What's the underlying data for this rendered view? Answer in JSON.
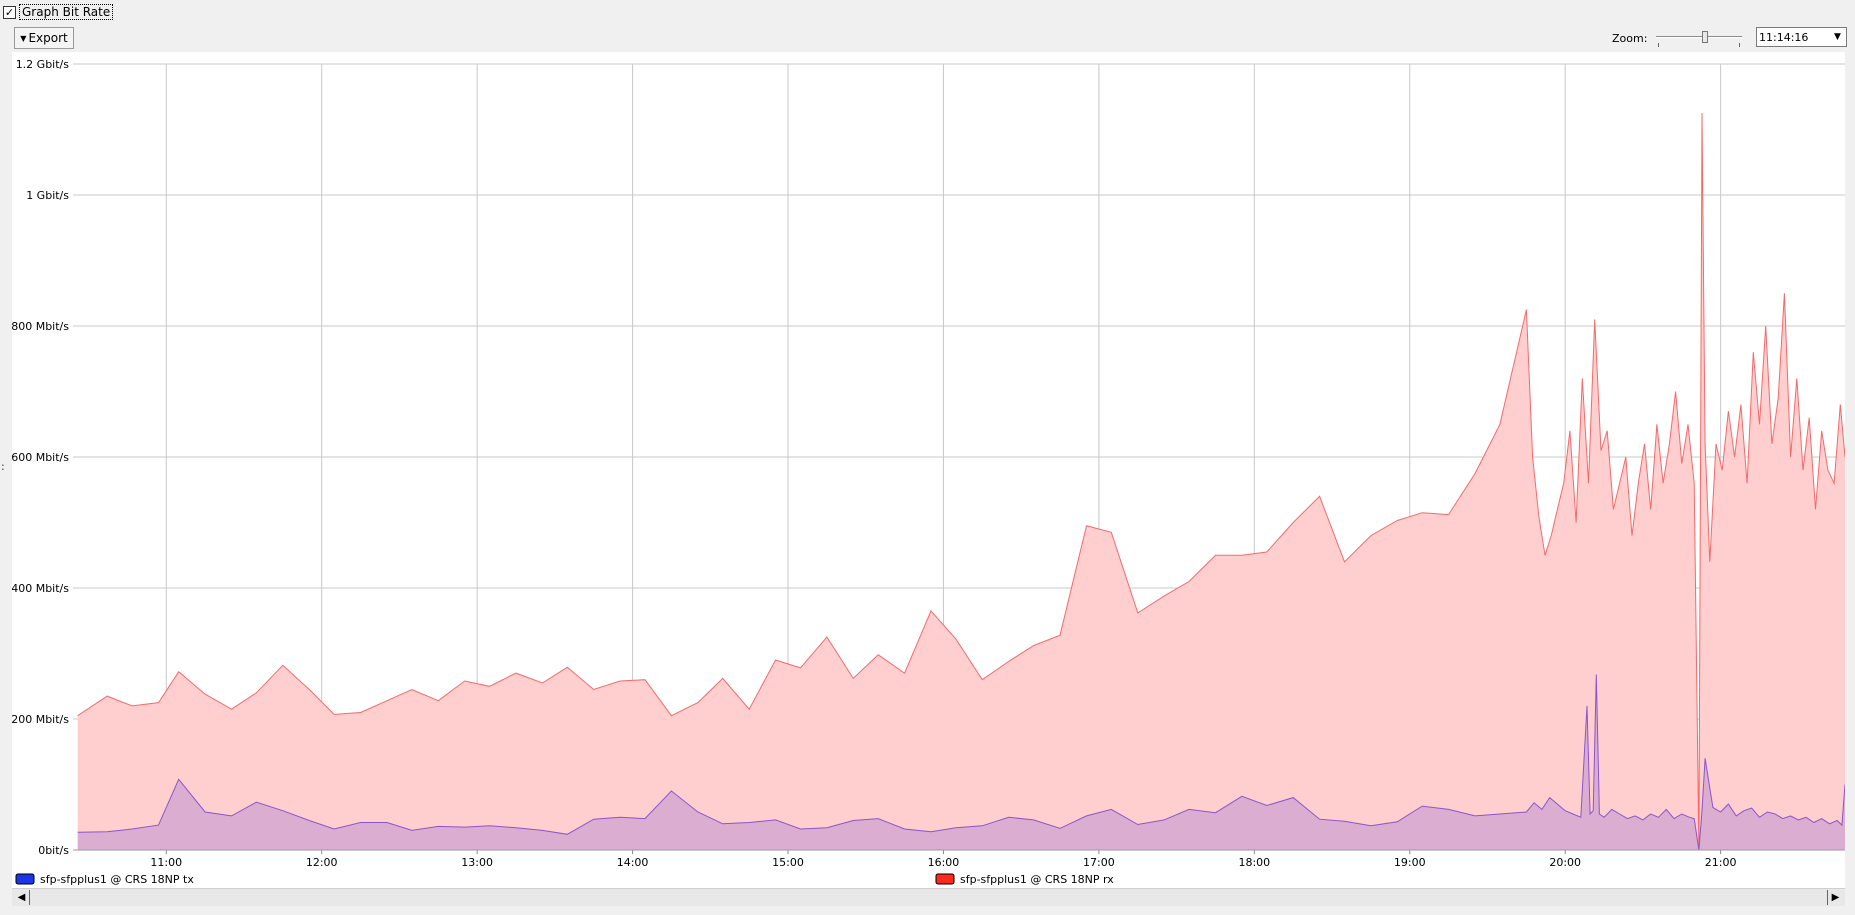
{
  "header": {
    "checkbox_mark": "✓",
    "graph_toggle_label": "Graph Bit Rate",
    "export_label": "Export",
    "export_arrow": "▼",
    "zoom_label": "Zoom:",
    "zoom_level": 0.58,
    "time_value": "11:14:16",
    "select_arrow": "▼"
  },
  "handle_glyph": ":",
  "chart_data": {
    "type": "area",
    "y_unit": "Mbit/s",
    "ylim": [
      0,
      1200
    ],
    "xlim": [
      10.4,
      21.8
    ],
    "y_ticks": [
      {
        "value": 0,
        "label": "0bit/s"
      },
      {
        "value": 200,
        "label": "200 Mbit/s"
      },
      {
        "value": 400,
        "label": "400 Mbit/s"
      },
      {
        "value": 600,
        "label": "600 Mbit/s"
      },
      {
        "value": 800,
        "label": "800 Mbit/s"
      },
      {
        "value": 1000,
        "label": "1 Gbit/s"
      },
      {
        "value": 1200,
        "label": "1.2 Gbit/s"
      }
    ],
    "x_ticks": [
      {
        "value": 11,
        "label": "11:00"
      },
      {
        "value": 12,
        "label": "12:00"
      },
      {
        "value": 13,
        "label": "13:00"
      },
      {
        "value": 14,
        "label": "14:00"
      },
      {
        "value": 15,
        "label": "15:00"
      },
      {
        "value": 16,
        "label": "16:00"
      },
      {
        "value": 17,
        "label": "17:00"
      },
      {
        "value": 18,
        "label": "18:00"
      },
      {
        "value": 19,
        "label": "19:00"
      },
      {
        "value": 20,
        "label": "20:00"
      },
      {
        "value": 21,
        "label": "21:00"
      }
    ],
    "grid": true,
    "legend_position": "bottom",
    "series": [
      {
        "name": "sfp-sfpplus1 @ CRS 18NP rx",
        "legend_color": "#ff2a1a",
        "stroke": "#f26b6b",
        "fill": "#ffcece",
        "x": [
          10.43,
          10.62,
          10.78,
          10.95,
          11.08,
          11.25,
          11.42,
          11.58,
          11.75,
          11.92,
          12.08,
          12.25,
          12.42,
          12.58,
          12.75,
          12.92,
          13.08,
          13.25,
          13.42,
          13.58,
          13.75,
          13.92,
          14.08,
          14.25,
          14.42,
          14.58,
          14.75,
          14.92,
          15.08,
          15.25,
          15.42,
          15.58,
          15.75,
          15.92,
          16.08,
          16.25,
          16.42,
          16.58,
          16.75,
          16.92,
          17.08,
          17.25,
          17.42,
          17.58,
          17.75,
          17.92,
          18.08,
          18.25,
          18.42,
          18.58,
          18.75,
          18.92,
          19.08,
          19.25,
          19.42,
          19.58,
          19.75,
          19.79,
          19.83,
          19.87,
          19.91,
          19.95,
          19.99,
          20.03,
          20.07,
          20.11,
          20.15,
          20.19,
          20.23,
          20.27,
          20.31,
          20.35,
          20.39,
          20.43,
          20.47,
          20.51,
          20.55,
          20.59,
          20.63,
          20.67,
          20.71,
          20.75,
          20.79,
          20.83,
          20.86,
          20.88,
          20.9,
          20.93,
          20.97,
          21.01,
          21.05,
          21.09,
          21.13,
          21.17,
          21.21,
          21.25,
          21.29,
          21.33,
          21.37,
          21.41,
          21.45,
          21.49,
          21.53,
          21.57,
          21.61,
          21.65,
          21.69,
          21.73,
          21.77,
          21.8
        ],
        "values": [
          205,
          235,
          220,
          225,
          272,
          238,
          215,
          240,
          282,
          245,
          207,
          210,
          228,
          245,
          228,
          258,
          250,
          270,
          255,
          279,
          245,
          258,
          260,
          205,
          225,
          262,
          215,
          290,
          278,
          325,
          262,
          298,
          270,
          365,
          322,
          260,
          288,
          312,
          328,
          495,
          485,
          362,
          388,
          410,
          450,
          450,
          455,
          500,
          540,
          440,
          480,
          503,
          515,
          512,
          575,
          650,
          825,
          600,
          510,
          450,
          480,
          520,
          560,
          640,
          500,
          720,
          560,
          810,
          610,
          640,
          520,
          560,
          600,
          480,
          560,
          620,
          520,
          650,
          560,
          620,
          700,
          590,
          650,
          560,
          0,
          1125,
          620,
          440,
          620,
          580,
          670,
          600,
          680,
          560,
          760,
          650,
          800,
          620,
          690,
          850,
          600,
          720,
          580,
          660,
          520,
          640,
          580,
          560,
          680,
          600
        ]
      },
      {
        "name": "sfp-sfpplus1 @ CRS 18NP tx",
        "legend_color": "#1a36e8",
        "stroke": "#8a55cc",
        "fill": "#c39ad4",
        "fill_opacity": 0.6,
        "x": [
          10.43,
          10.62,
          10.78,
          10.95,
          11.08,
          11.25,
          11.42,
          11.58,
          11.75,
          11.92,
          12.08,
          12.25,
          12.42,
          12.58,
          12.75,
          12.92,
          13.08,
          13.25,
          13.42,
          13.58,
          13.75,
          13.92,
          14.08,
          14.25,
          14.42,
          14.58,
          14.75,
          14.92,
          15.08,
          15.25,
          15.42,
          15.58,
          15.75,
          15.92,
          16.08,
          16.25,
          16.42,
          16.58,
          16.75,
          16.92,
          17.08,
          17.25,
          17.42,
          17.58,
          17.75,
          17.92,
          18.08,
          18.25,
          18.42,
          18.58,
          18.75,
          18.92,
          19.08,
          19.25,
          19.42,
          19.58,
          19.75,
          19.8,
          19.85,
          19.9,
          19.95,
          20.0,
          20.05,
          20.1,
          20.14,
          20.16,
          20.18,
          20.2,
          20.22,
          20.25,
          20.3,
          20.35,
          20.4,
          20.45,
          20.5,
          20.55,
          20.6,
          20.65,
          20.7,
          20.75,
          20.8,
          20.83,
          20.86,
          20.88,
          20.9,
          20.95,
          21.0,
          21.05,
          21.1,
          21.15,
          21.2,
          21.25,
          21.3,
          21.35,
          21.4,
          21.45,
          21.5,
          21.55,
          21.6,
          21.65,
          21.7,
          21.75,
          21.78,
          21.8
        ],
        "values": [
          27,
          28,
          32,
          38,
          108,
          58,
          52,
          73,
          60,
          45,
          32,
          42,
          42,
          30,
          36,
          35,
          37,
          34,
          30,
          24,
          47,
          50,
          48,
          90,
          58,
          40,
          42,
          46,
          32,
          34,
          45,
          48,
          32,
          28,
          34,
          37,
          50,
          46,
          33,
          52,
          62,
          39,
          46,
          62,
          57,
          82,
          68,
          80,
          47,
          44,
          37,
          43,
          67,
          62,
          52,
          55,
          58,
          72,
          62,
          80,
          70,
          60,
          55,
          50,
          220,
          55,
          60,
          268,
          55,
          50,
          62,
          55,
          48,
          52,
          46,
          55,
          50,
          62,
          48,
          55,
          50,
          48,
          0,
          60,
          140,
          65,
          58,
          70,
          52,
          60,
          64,
          50,
          58,
          55,
          48,
          52,
          46,
          50,
          42,
          48,
          40,
          45,
          38,
          100
        ]
      }
    ]
  }
}
